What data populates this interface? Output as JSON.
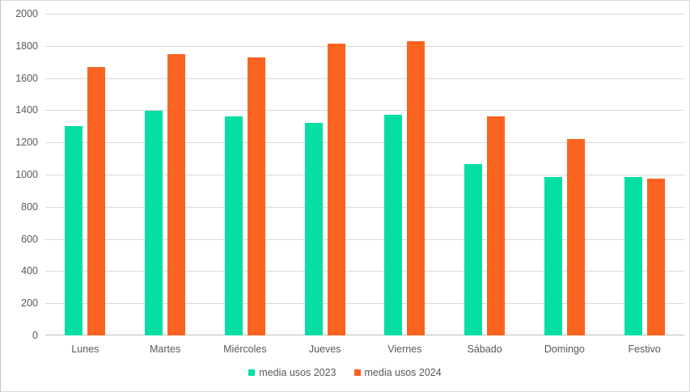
{
  "chart_style": {
    "background": "#FFFFFF",
    "border_color": "#D9D9D9",
    "border_left_color": "#B7C6E3",
    "grid_color": "#D9D9D9",
    "axis_line_color": "#BFBFBF",
    "text_color": "#595959"
  },
  "chart_data": {
    "type": "bar",
    "categories": [
      "Lunes",
      "Martes",
      "Miércoles",
      "Jueves",
      "Viernes",
      "Sábado",
      "Domingo",
      "Festivo"
    ],
    "series": [
      {
        "name": "media usos 2023",
        "color": "#05DFA5",
        "values": [
          1300,
          1395,
          1360,
          1320,
          1370,
          1065,
          985,
          985
        ]
      },
      {
        "name": "media usos 2024",
        "color": "#FA6320",
        "values": [
          1670,
          1750,
          1730,
          1815,
          1830,
          1360,
          1220,
          975
        ]
      }
    ],
    "ylim": [
      0,
      2000
    ],
    "yticks": [
      0,
      200,
      400,
      600,
      800,
      1000,
      1200,
      1400,
      1600,
      1800,
      2000
    ],
    "grid": true,
    "legend_position": "bottom",
    "legend": [
      "media usos 2023",
      "media usos 2024"
    ]
  }
}
